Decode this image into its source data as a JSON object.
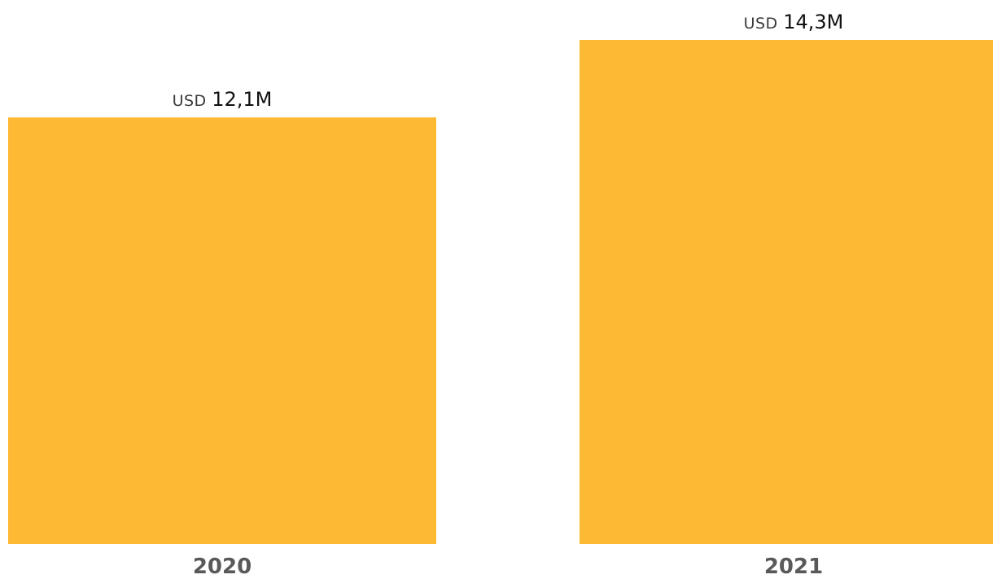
{
  "chart_data": {
    "type": "bar",
    "categories": [
      "2020",
      "2021"
    ],
    "values": [
      12.1,
      14.3
    ],
    "value_labels": [
      {
        "prefix": "USD",
        "number": "12,1M"
      },
      {
        "prefix": "USD",
        "number": "14,3M"
      }
    ],
    "title": "",
    "xlabel": "",
    "ylabel": "",
    "ylim": [
      0,
      14.3
    ],
    "grid": false,
    "legend": "none",
    "colors": {
      "bar": "#FDB933",
      "value_prefix": "#3a3a3a",
      "value_number": "#111111",
      "tick_label": "#595959"
    }
  }
}
